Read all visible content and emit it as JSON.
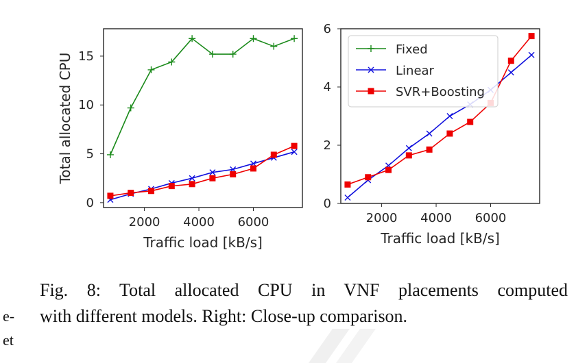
{
  "chart_data": [
    {
      "type": "line",
      "xlabel": "Traffic load [kB/s]",
      "ylabel": "Total allocated CPU",
      "xlim": [
        500,
        7800
      ],
      "ylim": [
        -0.5,
        17.8
      ],
      "xticks": [
        2000,
        4000,
        6000
      ],
      "yticks": [
        0,
        5,
        10,
        15
      ],
      "grid": false,
      "legend": "none",
      "series": [
        {
          "name": "Fixed",
          "color": "#1a8a1a",
          "marker": "plus",
          "x": [
            750,
            1500,
            2250,
            3000,
            3750,
            4500,
            5250,
            6000,
            6750,
            7500
          ],
          "y": [
            4.9,
            9.7,
            13.6,
            14.4,
            16.8,
            15.2,
            15.2,
            16.8,
            16.0,
            16.8
          ]
        },
        {
          "name": "Linear",
          "color": "#1010dd",
          "marker": "x",
          "x": [
            750,
            1500,
            2250,
            3000,
            3750,
            4500,
            5250,
            6000,
            6750,
            7500
          ],
          "y": [
            0.3,
            0.9,
            1.4,
            2.0,
            2.5,
            3.1,
            3.4,
            4.0,
            4.6,
            5.2
          ]
        },
        {
          "name": "SVR+Boosting",
          "color": "#ee0000",
          "marker": "square",
          "x": [
            750,
            1500,
            2250,
            3000,
            3750,
            4500,
            5250,
            6000,
            6750,
            7500
          ],
          "y": [
            0.7,
            1.0,
            1.2,
            1.7,
            1.9,
            2.5,
            2.9,
            3.5,
            4.9,
            5.8
          ]
        }
      ]
    },
    {
      "type": "line",
      "xlabel": "Traffic load [kB/s]",
      "ylabel": "",
      "xlim": [
        500,
        7800
      ],
      "ylim": [
        0,
        6
      ],
      "xticks": [
        2000,
        4000,
        6000
      ],
      "yticks": [
        0,
        2,
        4,
        6
      ],
      "grid": false,
      "legend": "top-left",
      "series": [
        {
          "name": "Fixed",
          "color": "#1a8a1a",
          "marker": "plus",
          "x": [],
          "y": []
        },
        {
          "name": "Linear",
          "color": "#1010dd",
          "marker": "x",
          "x": [
            750,
            1500,
            2250,
            3000,
            3750,
            4500,
            5250,
            6000,
            6750,
            7500
          ],
          "y": [
            0.2,
            0.8,
            1.3,
            1.9,
            2.4,
            3.0,
            3.4,
            3.9,
            4.5,
            5.1
          ]
        },
        {
          "name": "SVR+Boosting",
          "color": "#ee0000",
          "marker": "square",
          "x": [
            750,
            1500,
            2250,
            3000,
            3750,
            4500,
            5250,
            6000,
            6750,
            7500
          ],
          "y": [
            0.65,
            0.9,
            1.15,
            1.65,
            1.85,
            2.4,
            2.8,
            3.45,
            4.9,
            5.75
          ]
        }
      ]
    }
  ],
  "caption": {
    "line1": "Fig. 8: Total allocated CPU in VNF placements computed",
    "line2": "with different models. Right: Close-up comparison."
  },
  "fragments": {
    "left1": "e-",
    "left2": "et"
  }
}
